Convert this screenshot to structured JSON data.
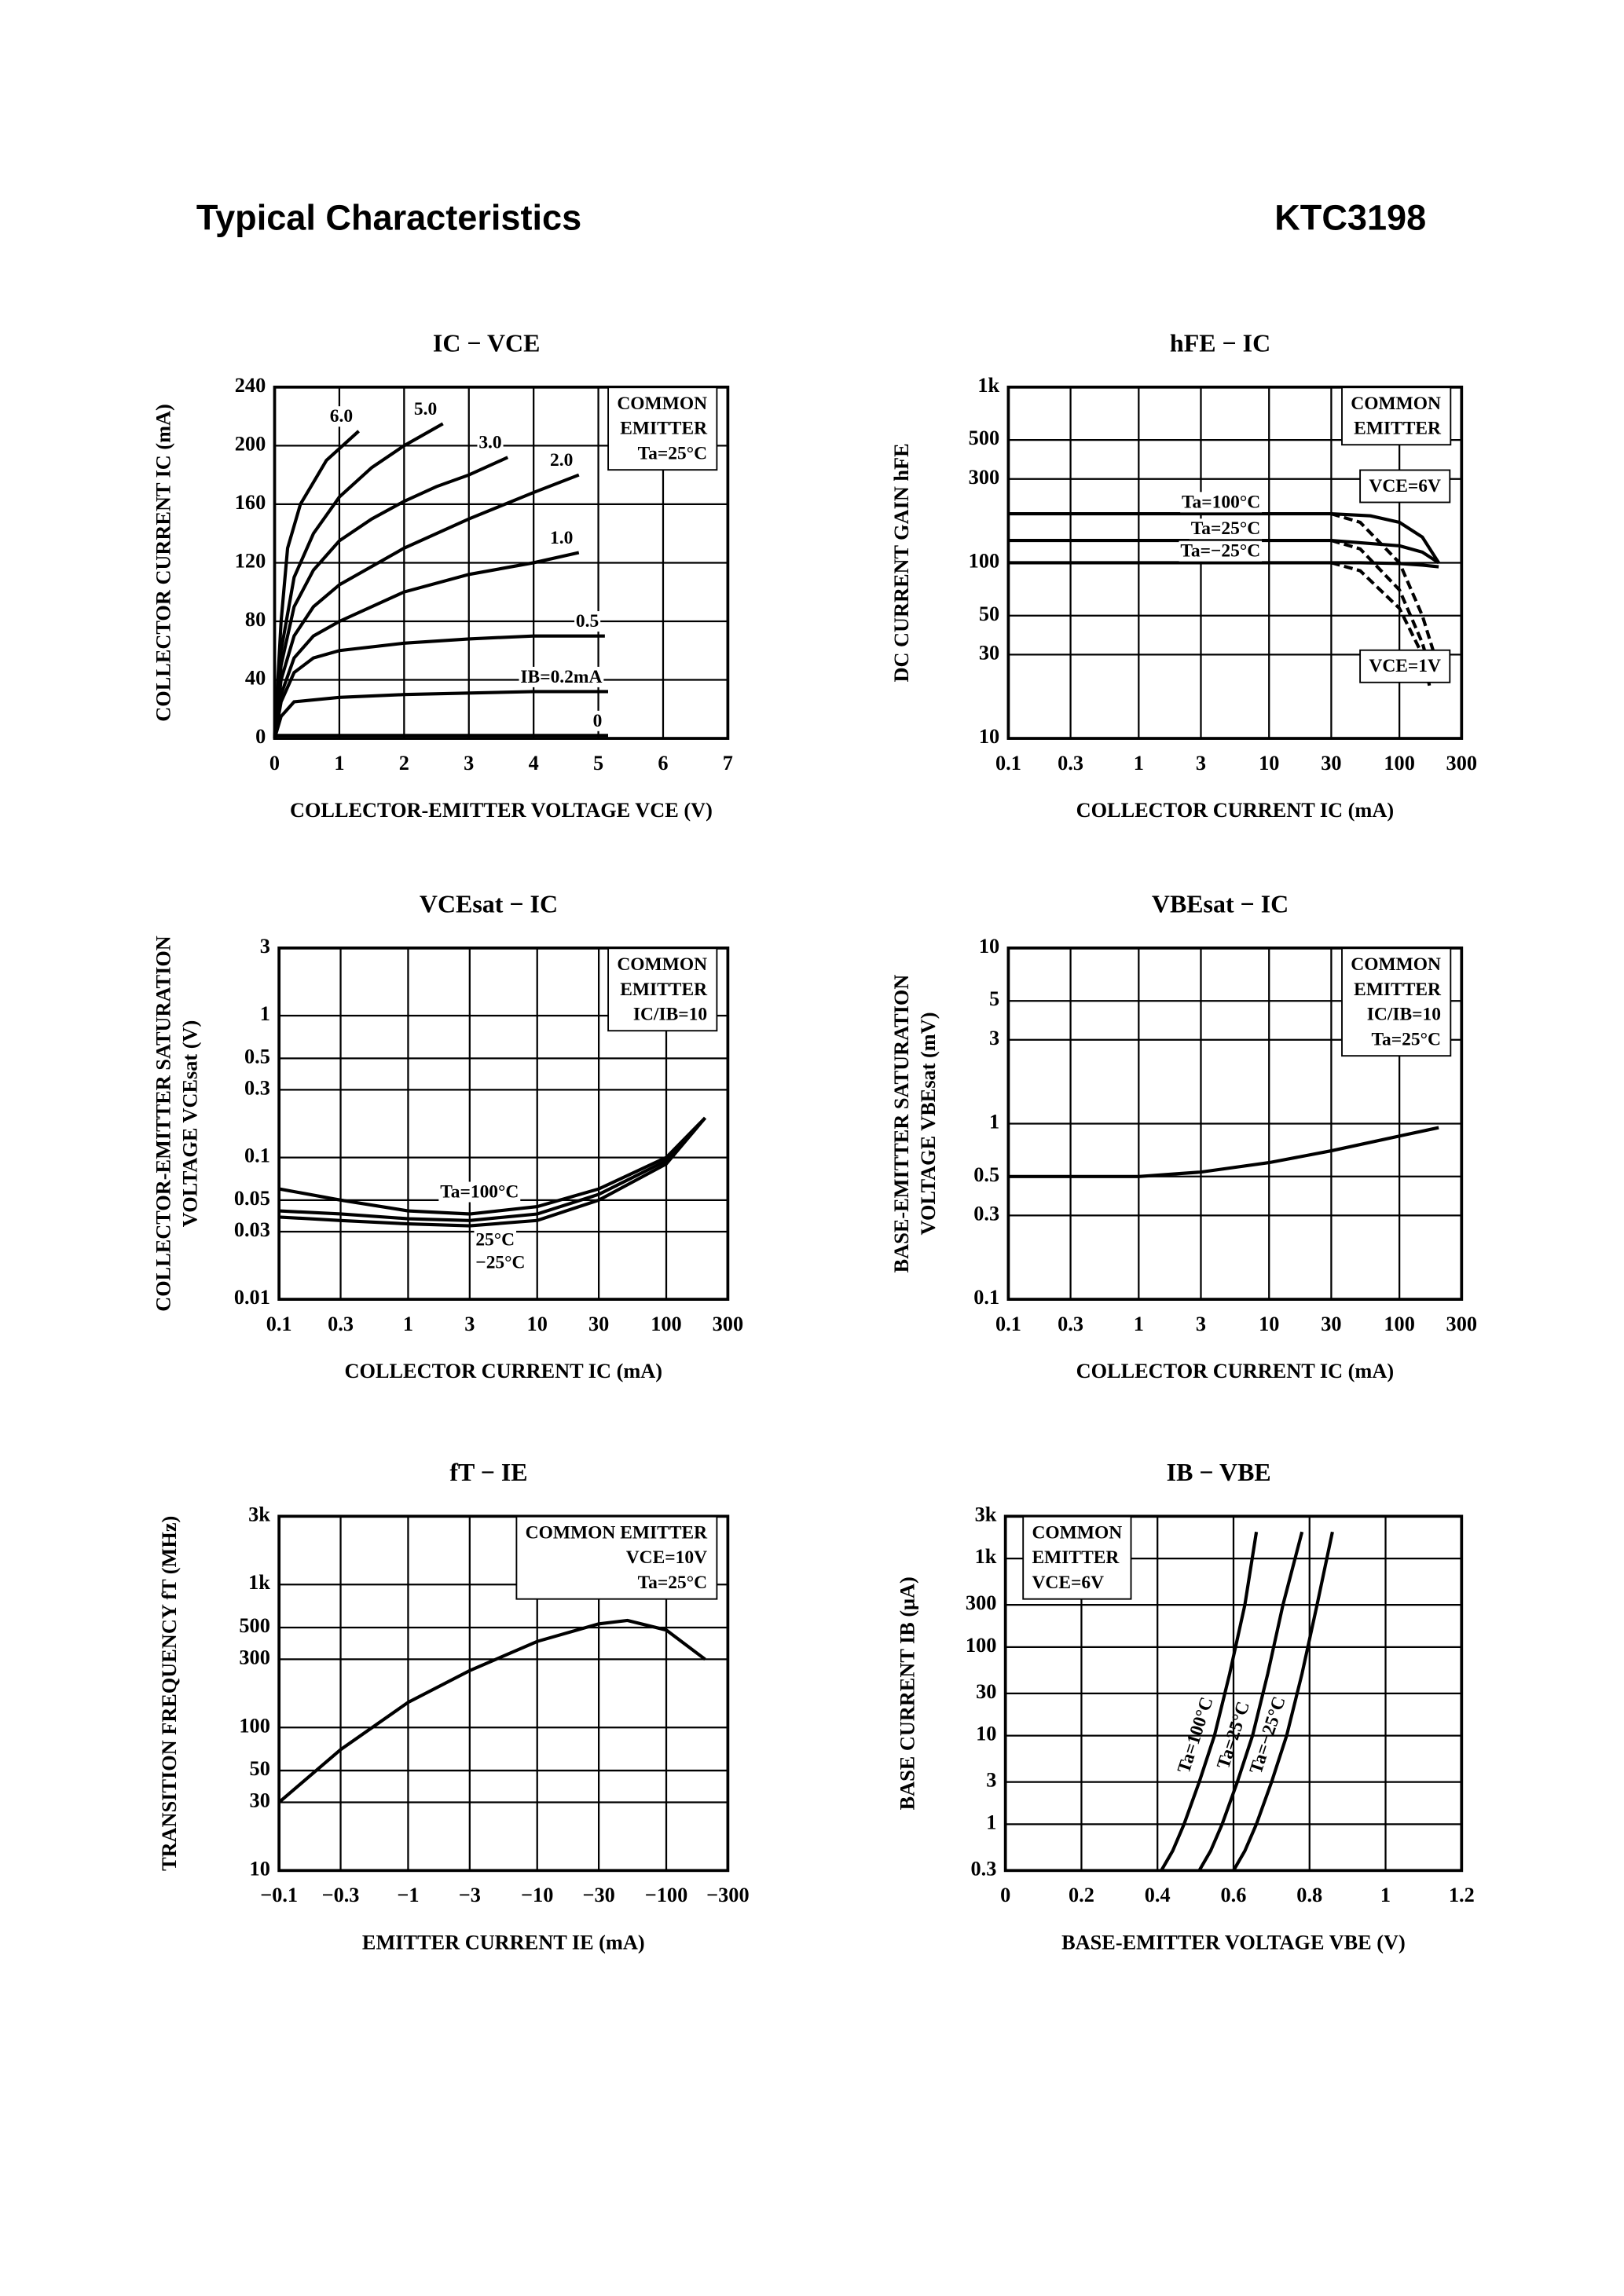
{
  "header": {
    "title": "Typical Characteristics",
    "part": "KTC3198"
  },
  "chart_data": [
    {
      "type": "line",
      "title": "IC − VCE",
      "xlabel": "COLLECTOR-EMITTER VOLTAGE VCE (V)",
      "ylabel": [
        "COLLECTOR CURRENT IC (mA)"
      ],
      "xscale": "linear",
      "yscale": "linear",
      "xlim": [
        0,
        7
      ],
      "ylim": [
        0,
        240
      ],
      "xticks": [
        0,
        1,
        2,
        3,
        4,
        5,
        6,
        7
      ],
      "yticks": [
        0,
        40,
        80,
        120,
        160,
        200,
        240
      ],
      "grid": true,
      "annotations": [
        {
          "lines": [
            "COMMON",
            "EMITTER",
            "Ta=25°C"
          ],
          "corner": "top-right"
        }
      ],
      "series": [
        {
          "name": "6.0",
          "color": "#000",
          "x": [
            0,
            0.1,
            0.2,
            0.4,
            0.6,
            0.8,
            1.3
          ],
          "values": [
            0,
            80,
            130,
            160,
            175,
            190,
            210
          ]
        },
        {
          "name": "5.0",
          "color": "#000",
          "x": [
            0,
            0.1,
            0.3,
            0.6,
            1,
            1.5,
            2,
            2.6
          ],
          "values": [
            0,
            60,
            110,
            140,
            165,
            185,
            200,
            215
          ]
        },
        {
          "name": "3.0",
          "color": "#000",
          "x": [
            0,
            0.1,
            0.3,
            0.6,
            1,
            1.5,
            2,
            2.5,
            3,
            3.6
          ],
          "values": [
            0,
            50,
            90,
            115,
            135,
            150,
            162,
            172,
            180,
            192
          ]
        },
        {
          "name": "2.0",
          "color": "#000",
          "x": [
            0,
            0.1,
            0.3,
            0.6,
            1,
            2,
            3,
            4,
            4.7
          ],
          "values": [
            0,
            40,
            70,
            90,
            105,
            130,
            150,
            168,
            180
          ]
        },
        {
          "name": "1.0",
          "color": "#000",
          "x": [
            0,
            0.1,
            0.3,
            0.6,
            1,
            2,
            3,
            4,
            4.7
          ],
          "values": [
            0,
            30,
            55,
            70,
            80,
            100,
            112,
            120,
            127
          ]
        },
        {
          "name": "0.5",
          "color": "#000",
          "x": [
            0,
            0.1,
            0.3,
            0.6,
            1,
            2,
            3,
            4,
            5.1
          ],
          "values": [
            0,
            25,
            45,
            55,
            60,
            65,
            68,
            70,
            70
          ]
        },
        {
          "name": "IB=0.2mA",
          "color": "#000",
          "x": [
            0,
            0.1,
            0.3,
            1,
            2,
            3,
            4,
            5.15
          ],
          "values": [
            0,
            15,
            25,
            28,
            30,
            31,
            32,
            32
          ]
        },
        {
          "name": "0",
          "color": "#000",
          "x": [
            0,
            5.15
          ],
          "values": [
            2,
            2
          ]
        }
      ]
    },
    {
      "type": "line",
      "title": "hFE − IC",
      "xlabel": "COLLECTOR CURRENT IC (mA)",
      "ylabel": [
        "DC CURRENT GAIN hFE"
      ],
      "xscale": "log",
      "yscale": "log",
      "xlim": [
        0.1,
        300
      ],
      "ylim": [
        10,
        1000
      ],
      "xticks": [
        0.1,
        0.3,
        1,
        3,
        10,
        30,
        100,
        300
      ],
      "yticks": [
        10,
        30,
        50,
        100,
        300,
        500,
        {
          "value": 1000,
          "label": "1k"
        }
      ],
      "grid": true,
      "annotations": [
        {
          "lines": [
            "COMMON",
            "EMITTER"
          ],
          "corner": "top-right"
        },
        {
          "lines": [
            "VCE=6V"
          ],
          "corner": "upper-right"
        },
        {
          "lines": [
            "VCE=1V"
          ],
          "corner": "bottom-right"
        }
      ],
      "series": [
        {
          "name": "Ta=100°C",
          "color": "#000",
          "x": [
            0.1,
            1,
            10,
            30,
            60,
            100,
            150,
            200
          ],
          "values": [
            190,
            190,
            190,
            190,
            185,
            170,
            140,
            100
          ]
        },
        {
          "name": "Ta=25°C",
          "color": "#000",
          "x": [
            0.1,
            1,
            10,
            30,
            50,
            100,
            150,
            200
          ],
          "values": [
            134,
            134,
            134,
            134,
            130,
            125,
            115,
            100
          ]
        },
        {
          "name": "Ta=−25°C",
          "color": "#000",
          "x": [
            0.1,
            1,
            10,
            30,
            50,
            100,
            150,
            200
          ],
          "values": [
            100,
            100,
            100,
            100,
            100,
            99,
            97,
            95
          ]
        },
        {
          "color": "#000",
          "dash": true,
          "x": [
            30,
            50,
            100,
            150,
            200
          ],
          "values": [
            190,
            170,
            100,
            50,
            25
          ]
        },
        {
          "color": "#000",
          "dash": true,
          "x": [
            30,
            50,
            100,
            150,
            180
          ],
          "values": [
            134,
            120,
            70,
            35,
            22
          ]
        },
        {
          "color": "#000",
          "dash": true,
          "x": [
            30,
            50,
            100,
            150,
            170
          ],
          "values": [
            100,
            90,
            55,
            30,
            20
          ]
        }
      ]
    },
    {
      "type": "line",
      "title": "VCEsat − IC",
      "xlabel": "COLLECTOR CURRENT IC (mA)",
      "ylabel": [
        "COLLECTOR-EMITTER SATURATION",
        "VOLTAGE VCEsat (V)"
      ],
      "xscale": "log",
      "yscale": "log",
      "xlim": [
        0.1,
        300
      ],
      "ylim": [
        0.01,
        3
      ],
      "xticks": [
        0.1,
        0.3,
        1,
        3,
        10,
        30,
        100,
        300
      ],
      "yticks": [
        0.01,
        0.03,
        0.05,
        0.1,
        0.3,
        0.5,
        1,
        3
      ],
      "grid": true,
      "annotations": [
        {
          "lines": [
            "COMMON",
            "EMITTER",
            "IC/IB=10"
          ],
          "corner": "top-right"
        }
      ],
      "series": [
        {
          "name": "Ta=100°C",
          "color": "#000",
          "x": [
            0.1,
            0.3,
            1,
            3,
            10,
            30,
            100,
            200
          ],
          "values": [
            0.06,
            0.05,
            0.042,
            0.04,
            0.045,
            0.06,
            0.1,
            0.19
          ]
        },
        {
          "name": "25°C",
          "color": "#000",
          "x": [
            0.1,
            0.3,
            1,
            3,
            10,
            30,
            100,
            200
          ],
          "values": [
            0.042,
            0.04,
            0.037,
            0.036,
            0.04,
            0.055,
            0.095,
            0.19
          ]
        },
        {
          "name": "−25°C",
          "color": "#000",
          "x": [
            0.1,
            0.3,
            1,
            3,
            10,
            30,
            100,
            200
          ],
          "values": [
            0.038,
            0.036,
            0.034,
            0.033,
            0.036,
            0.05,
            0.09,
            0.19
          ]
        }
      ]
    },
    {
      "type": "line",
      "title": "VBEsat − IC",
      "xlabel": "COLLECTOR CURRENT IC (mA)",
      "ylabel": [
        "BASE-EMITTER SATURATION",
        "VOLTAGE VBEsat (mV)"
      ],
      "xscale": "log",
      "yscale": "log",
      "xlim": [
        0.1,
        300
      ],
      "ylim": [
        0.1,
        10
      ],
      "xticks": [
        0.1,
        0.3,
        1,
        3,
        10,
        30,
        100,
        300
      ],
      "yticks": [
        0.1,
        0.3,
        0.5,
        1,
        3,
        5,
        10
      ],
      "grid": true,
      "annotations": [
        {
          "lines": [
            "COMMON",
            "EMITTER",
            "IC/IB=10",
            "Ta=25°C"
          ],
          "corner": "top-right"
        }
      ],
      "series": [
        {
          "color": "#000",
          "x": [
            0.1,
            1,
            3,
            10,
            30,
            100,
            200
          ],
          "values": [
            0.5,
            0.5,
            0.53,
            0.6,
            0.7,
            0.85,
            0.95
          ]
        }
      ]
    },
    {
      "type": "line",
      "title": "fT − IE",
      "xlabel": "EMITTER CURRENT IE (mA)",
      "ylabel": [
        "TRANSITION FREQUENCY fT (MHz)"
      ],
      "xscale": "log",
      "yscale": "log",
      "xlim": [
        -0.1,
        -300
      ],
      "ylim": [
        10,
        3000
      ],
      "xticks": [
        {
          "value": -0.1,
          "label": "−0.1"
        },
        {
          "value": -0.3,
          "label": "−0.3"
        },
        {
          "value": -1,
          "label": "−1"
        },
        {
          "value": -3,
          "label": "−3"
        },
        {
          "value": -10,
          "label": "−10"
        },
        {
          "value": -30,
          "label": "−30"
        },
        {
          "value": -100,
          "label": "−100"
        },
        {
          "value": -300,
          "label": "−300"
        }
      ],
      "yticks": [
        10,
        30,
        50,
        100,
        300,
        500,
        {
          "value": 1000,
          "label": "1k"
        },
        {
          "value": 3000,
          "label": "3k"
        }
      ],
      "grid": true,
      "annotations": [
        {
          "lines": [
            "COMMON EMITTER",
            "VCE=10V",
            "Ta=25°C"
          ],
          "corner": "top-right"
        }
      ],
      "series": [
        {
          "color": "#000",
          "x": [
            -0.1,
            -0.3,
            -1,
            -3,
            -10,
            -30,
            -50,
            -100,
            -200
          ],
          "values": [
            30,
            70,
            150,
            250,
            400,
            530,
            560,
            480,
            300
          ]
        }
      ]
    },
    {
      "type": "line",
      "title": "IB − VBE",
      "xlabel": "BASE-EMITTER VOLTAGE VBE (V)",
      "ylabel": [
        "BASE CURRENT IB (μA)"
      ],
      "xscale": "linear",
      "yscale": "log",
      "xlim": [
        0,
        1.2
      ],
      "ylim": [
        0.3,
        3000
      ],
      "xticks": [
        0,
        0.2,
        0.4,
        0.6,
        0.8,
        1.0,
        1.2
      ],
      "yticks": [
        0.3,
        1,
        3,
        10,
        30,
        100,
        300,
        {
          "value": 1000,
          "label": "1k"
        },
        {
          "value": 3000,
          "label": "3k"
        }
      ],
      "grid": true,
      "annotations": [
        {
          "lines": [
            "COMMON",
            "EMITTER",
            "VCE=6V"
          ],
          "corner": "top-left"
        }
      ],
      "series": [
        {
          "name": "Ta=100°C",
          "color": "#000",
          "x": [
            0.41,
            0.44,
            0.47,
            0.51,
            0.55,
            0.59,
            0.63,
            0.66
          ],
          "values": [
            0.3,
            0.5,
            1,
            3,
            10,
            50,
            300,
            2000
          ]
        },
        {
          "name": "Ta=25°C",
          "color": "#000",
          "x": [
            0.51,
            0.54,
            0.57,
            0.61,
            0.65,
            0.69,
            0.73,
            0.78
          ],
          "values": [
            0.3,
            0.5,
            1,
            3,
            10,
            50,
            300,
            2000
          ]
        },
        {
          "name": "Ta=−25°C",
          "color": "#000",
          "x": [
            0.6,
            0.63,
            0.66,
            0.7,
            0.74,
            0.78,
            0.82,
            0.86
          ],
          "values": [
            0.3,
            0.5,
            1,
            3,
            10,
            50,
            300,
            2000
          ]
        }
      ]
    }
  ]
}
